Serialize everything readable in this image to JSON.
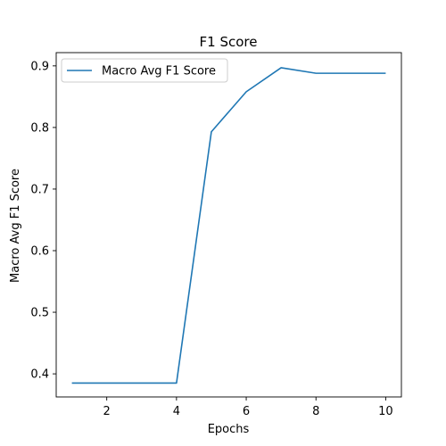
{
  "chart_data": {
    "type": "line",
    "title": "F1 Score",
    "xlabel": "Epochs",
    "ylabel": "Macro Avg F1 Score",
    "xlim": [
      0.55,
      10.45
    ],
    "ylim": [
      0.3625,
      0.9215
    ],
    "x_ticks": [
      2,
      4,
      6,
      8,
      10
    ],
    "x_tick_labels": [
      "2",
      "4",
      "6",
      "8",
      "10"
    ],
    "y_ticks": [
      0.4,
      0.5,
      0.6,
      0.7,
      0.8,
      0.9
    ],
    "y_tick_labels": [
      "0.4",
      "0.5",
      "0.6",
      "0.7",
      "0.8",
      "0.9"
    ],
    "grid": false,
    "legend": {
      "placement": "top-left",
      "entries": [
        "Macro Avg F1 Score"
      ]
    },
    "series": [
      {
        "name": "Macro Avg F1 Score",
        "color": "#1f77b4",
        "x": [
          1,
          2,
          3,
          4,
          5,
          6,
          7,
          8,
          9,
          10
        ],
        "y": [
          0.385,
          0.385,
          0.385,
          0.385,
          0.793,
          0.858,
          0.897,
          0.888,
          0.888,
          0.888
        ]
      }
    ]
  }
}
